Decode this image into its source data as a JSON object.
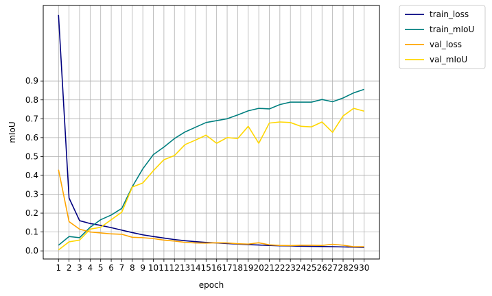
{
  "chart_data": {
    "type": "line",
    "xlabel": "epoch",
    "ylabel": "mIoU",
    "x": [
      1,
      2,
      3,
      4,
      5,
      6,
      7,
      8,
      9,
      10,
      11,
      12,
      13,
      14,
      15,
      16,
      17,
      18,
      19,
      20,
      21,
      22,
      23,
      24,
      25,
      26,
      27,
      28,
      29,
      30
    ],
    "x_tick_labels": [
      "1",
      "2",
      "3",
      "4",
      "5",
      "6",
      "7",
      "8",
      "9",
      "10",
      "11",
      "12",
      "13",
      "14",
      "15",
      "16",
      "17",
      "18",
      "19",
      "20",
      "21",
      "22",
      "23",
      "24",
      "25",
      "26",
      "27",
      "28",
      "29",
      "30"
    ],
    "y_ticks": [
      0.0,
      0.1,
      0.2,
      0.3,
      0.4,
      0.5,
      0.6,
      0.7,
      0.8,
      0.9
    ],
    "y_tick_labels": [
      "0.0",
      "0.1",
      "0.2",
      "0.3",
      "0.4",
      "0.5",
      "0.6",
      "0.7",
      "0.8",
      "0.9"
    ],
    "xlim": [
      -0.45,
      31.45
    ],
    "ylim": [
      -0.043,
      1.3
    ],
    "grid": true,
    "legend_placement": "outside upper right",
    "series": [
      {
        "name": "train_loss",
        "color": "#00007f",
        "values": [
          1.25,
          0.28,
          0.16,
          0.145,
          0.135,
          0.123,
          0.11,
          0.097,
          0.085,
          0.076,
          0.068,
          0.06,
          0.054,
          0.049,
          0.045,
          0.042,
          0.039,
          0.036,
          0.033,
          0.031,
          0.029,
          0.027,
          0.026,
          0.025,
          0.024,
          0.023,
          0.022,
          0.021,
          0.02,
          0.019
        ]
      },
      {
        "name": "train_mIoU",
        "color": "#007f7f",
        "values": [
          0.03,
          0.076,
          0.07,
          0.125,
          0.165,
          0.19,
          0.225,
          0.34,
          0.435,
          0.51,
          0.55,
          0.595,
          0.63,
          0.655,
          0.68,
          0.69,
          0.7,
          0.72,
          0.742,
          0.755,
          0.752,
          0.775,
          0.788,
          0.788,
          0.788,
          0.802,
          0.79,
          0.81,
          0.837,
          0.856
        ]
      },
      {
        "name": "val_loss",
        "color": "#ffa500",
        "values": [
          0.43,
          0.155,
          0.115,
          0.1,
          0.095,
          0.09,
          0.088,
          0.072,
          0.07,
          0.065,
          0.057,
          0.052,
          0.045,
          0.042,
          0.041,
          0.043,
          0.042,
          0.038,
          0.036,
          0.043,
          0.032,
          0.029,
          0.028,
          0.03,
          0.03,
          0.029,
          0.035,
          0.03,
          0.022,
          0.022
        ]
      },
      {
        "name": "val_mIoU",
        "color": "#ffd700",
        "values": [
          0.005,
          0.048,
          0.057,
          0.115,
          0.125,
          0.165,
          0.205,
          0.338,
          0.36,
          0.425,
          0.483,
          0.505,
          0.563,
          0.587,
          0.613,
          0.57,
          0.6,
          0.595,
          0.66,
          0.57,
          0.677,
          0.683,
          0.68,
          0.66,
          0.657,
          0.683,
          0.628,
          0.715,
          0.755,
          0.74
        ]
      }
    ]
  }
}
